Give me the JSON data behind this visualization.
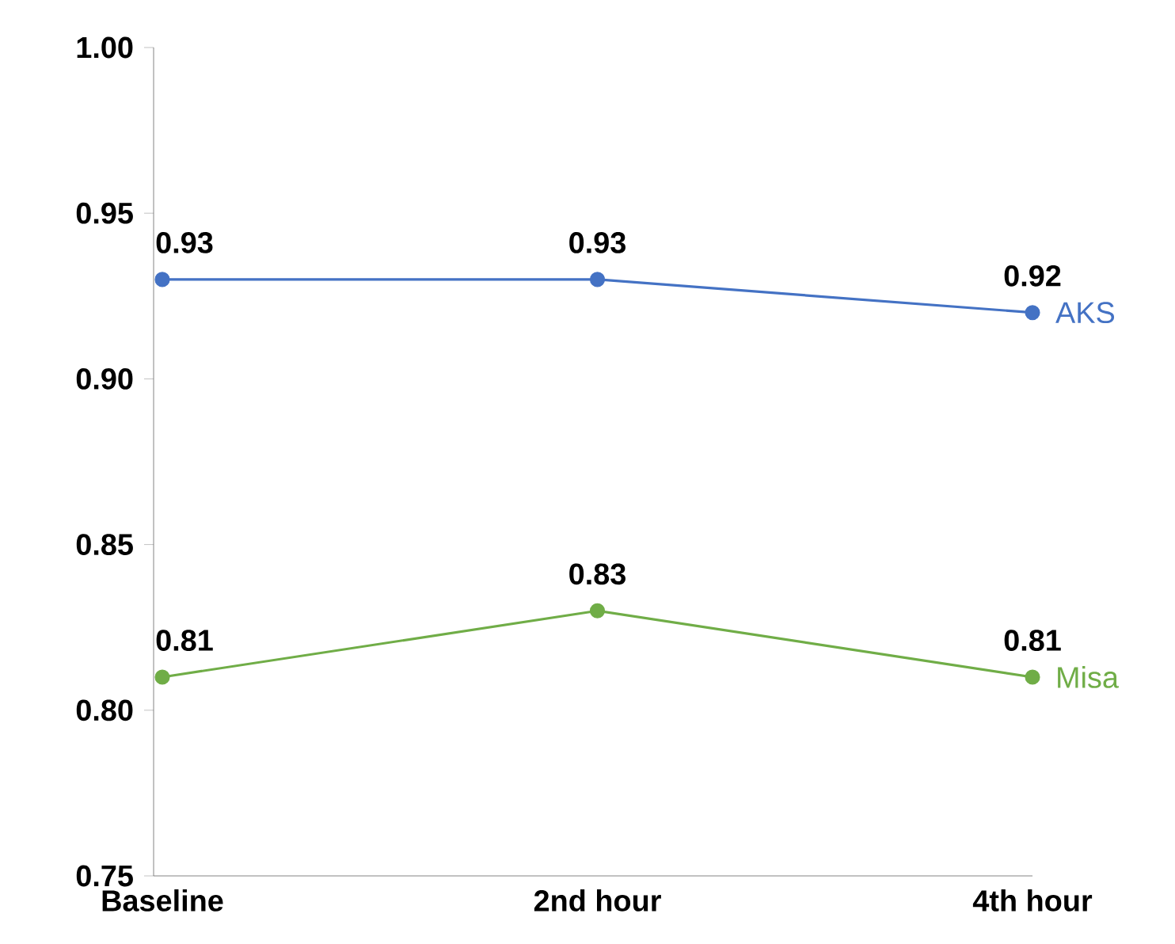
{
  "chart_data": {
    "type": "line",
    "categories": [
      "Baseline",
      "2nd hour",
      "4th hour"
    ],
    "series": [
      {
        "name": "AKS",
        "color": "#4472c4",
        "values": [
          0.93,
          0.93,
          0.92
        ]
      },
      {
        "name": "Misa",
        "color": "#70ad47",
        "values": [
          0.81,
          0.83,
          0.81
        ]
      }
    ],
    "ylim": [
      0.75,
      1.0
    ],
    "yticks": [
      {
        "value": 0.75,
        "label": "0.75"
      },
      {
        "value": 0.8,
        "label": "0.80"
      },
      {
        "value": 0.85,
        "label": "0.85"
      },
      {
        "value": 0.9,
        "label": "0.90"
      },
      {
        "value": 0.95,
        "label": "0.95"
      },
      {
        "value": 1.0,
        "label": "1.00"
      }
    ],
    "data_labels": true,
    "legend": false,
    "grid": false,
    "marker": "circle",
    "line_style": "solid"
  }
}
